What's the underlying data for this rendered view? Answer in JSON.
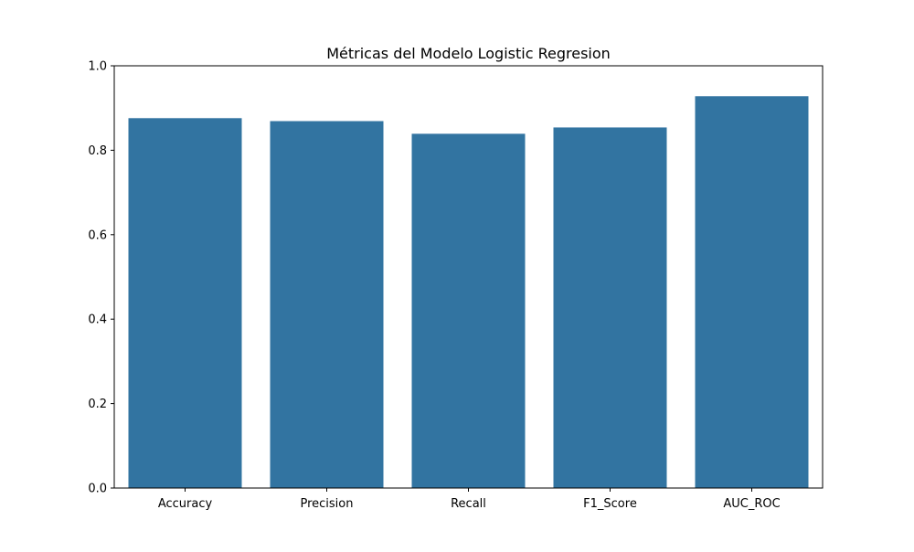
{
  "chart_data": {
    "type": "bar",
    "title": "Métricas del Modelo Logistic Regresion",
    "xlabel": "",
    "ylabel": "",
    "categories": [
      "Accuracy",
      "Precision",
      "Recall",
      "F1_Score",
      "AUC_ROC"
    ],
    "values": [
      0.876,
      0.869,
      0.839,
      0.854,
      0.928
    ],
    "ylim": [
      0,
      1.0
    ],
    "yticks": [
      "0.0",
      "0.2",
      "0.4",
      "0.6",
      "0.8",
      "1.0"
    ],
    "grid": false,
    "legend": "none",
    "colors": {
      "bar": "#3274a1",
      "axis": "#000000",
      "background": "#ffffff"
    }
  }
}
